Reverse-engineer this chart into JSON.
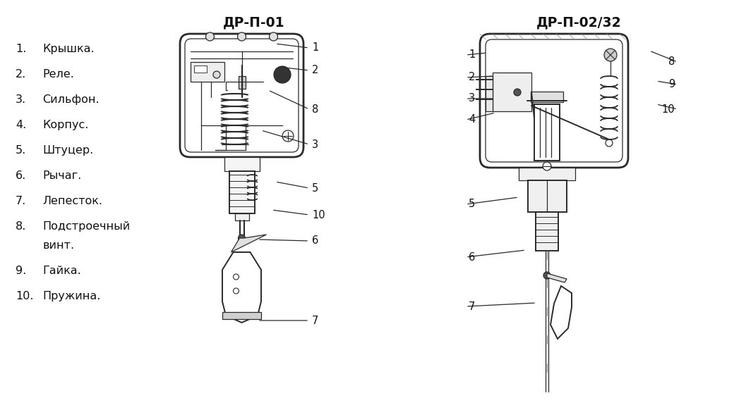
{
  "background_color": "#ffffff",
  "title1": "ДР-П-01",
  "title2": "ДР-П-02/32",
  "fig_width": 10.57,
  "fig_height": 5.92,
  "legend_entries": [
    [
      "1.",
      "Крышка."
    ],
    [
      "2.",
      "Реле."
    ],
    [
      "3.",
      "Сильфон."
    ],
    [
      "4.",
      "Корпус."
    ],
    [
      "5.",
      "Штуцер."
    ],
    [
      "6.",
      "Рычаг."
    ],
    [
      "7.",
      "Лепесток."
    ],
    [
      "8.",
      "Подстроечный",
      "винт."
    ],
    [
      "9.",
      "Гайка."
    ],
    [
      "10.",
      "Пружина."
    ]
  ]
}
